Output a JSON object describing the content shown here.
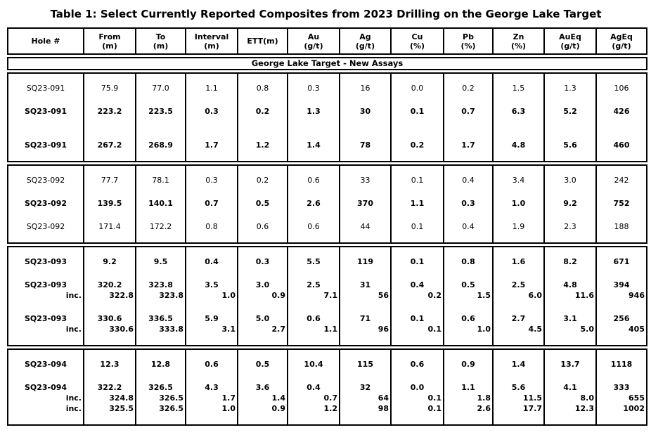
{
  "page": {
    "title": "Table 1: Select Currently Reported Composites from 2023 Drilling on the George Lake Target"
  },
  "table": {
    "band": "George Lake Target - New Assays",
    "columns": [
      {
        "line1": "Hole #",
        "line2": ""
      },
      {
        "line1": "From",
        "line2": "(m)"
      },
      {
        "line1": "To",
        "line2": "(m)"
      },
      {
        "line1": "Interval",
        "line2": "(m)"
      },
      {
        "line1": "ETT(m)",
        "line2": ""
      },
      {
        "line1": "Au",
        "line2": "(g/t)"
      },
      {
        "line1": "Ag",
        "line2": "(g/t)"
      },
      {
        "line1": "Cu",
        "line2": "(%)"
      },
      {
        "line1": "Pb",
        "line2": "(%)"
      },
      {
        "line1": "Zn",
        "line2": "(%)"
      },
      {
        "line1": "AuEq",
        "line2": "(g/t)"
      },
      {
        "line1": "AgEq",
        "line2": "(g/t)"
      }
    ],
    "groups": [
      {
        "rows": [
          {
            "bold": false,
            "cells": [
              "SQ23-091",
              "75.9",
              "77.0",
              "1.1",
              "0.8",
              "0.3",
              "16",
              "0.0",
              "0.2",
              "1.5",
              "1.3",
              "106"
            ]
          },
          {
            "bold": true,
            "cells": [
              "SQ23-091",
              "223.2",
              "223.5",
              "0.3",
              "0.2",
              "1.3",
              "30",
              "0.1",
              "0.7",
              "6.3",
              "5.2",
              "426"
            ]
          },
          {
            "bold": true,
            "gap_before": true,
            "cells": [
              "SQ23-091",
              "267.2",
              "268.9",
              "1.7",
              "1.2",
              "1.4",
              "78",
              "0.2",
              "1.7",
              "4.8",
              "5.6",
              "460"
            ]
          }
        ]
      },
      {
        "rows": [
          {
            "bold": false,
            "cells": [
              "SQ23-092",
              "77.7",
              "78.1",
              "0.3",
              "0.2",
              "0.6",
              "33",
              "0.1",
              "0.4",
              "3.4",
              "3.0",
              "242"
            ]
          },
          {
            "bold": true,
            "cells": [
              "SQ23-092",
              "139.5",
              "140.1",
              "0.7",
              "0.5",
              "2.6",
              "370",
              "1.1",
              "0.3",
              "1.0",
              "9.2",
              "752"
            ]
          },
          {
            "bold": false,
            "cells": [
              "SQ23-092",
              "171.4",
              "172.2",
              "0.8",
              "0.6",
              "0.6",
              "44",
              "0.1",
              "0.4",
              "1.9",
              "2.3",
              "188"
            ]
          }
        ]
      },
      {
        "rows": [
          {
            "bold": true,
            "cells": [
              "SQ23-093",
              "9.2",
              "9.5",
              "0.4",
              "0.3",
              "5.5",
              "119",
              "0.1",
              "0.8",
              "1.6",
              "8.2",
              "671"
            ]
          },
          {
            "bold": true,
            "cells": [
              "SQ23-093",
              "320.2",
              "323.8",
              "3.5",
              "3.0",
              "2.5",
              "31",
              "0.4",
              "0.5",
              "2.5",
              "4.8",
              "394"
            ],
            "subrows": [
              [
                "inc.",
                "322.8",
                "323.8",
                "1.0",
                "0.9",
                "7.1",
                "56",
                "0.2",
                "1.5",
                "6.0",
                "11.6",
                "946"
              ]
            ]
          },
          {
            "bold": true,
            "cells": [
              "SQ23-093",
              "330.6",
              "336.5",
              "5.9",
              "5.0",
              "0.6",
              "71",
              "0.1",
              "0.6",
              "2.7",
              "3.1",
              "256"
            ],
            "subrows": [
              [
                "inc.",
                "330.6",
                "333.8",
                "3.1",
                "2.7",
                "1.1",
                "96",
                "0.1",
                "1.0",
                "4.5",
                "5.0",
                "405"
              ]
            ]
          }
        ]
      },
      {
        "rows": [
          {
            "bold": true,
            "cells": [
              "SQ23-094",
              "12.3",
              "12.8",
              "0.6",
              "0.5",
              "10.4",
              "115",
              "0.6",
              "0.9",
              "1.4",
              "13.7",
              "1118"
            ]
          },
          {
            "bold": true,
            "cells": [
              "SQ23-094",
              "322.2",
              "326.5",
              "4.3",
              "3.6",
              "0.4",
              "32",
              "0.0",
              "1.1",
              "5.6",
              "4.1",
              "333"
            ],
            "subrows": [
              [
                "inc.",
                "324.8",
                "326.5",
                "1.7",
                "1.4",
                "0.7",
                "64",
                "0.1",
                "1.8",
                "11.5",
                "8.0",
                "655"
              ],
              [
                "inc.",
                "325.5",
                "326.5",
                "1.0",
                "0.9",
                "1.2",
                "98",
                "0.1",
                "2.6",
                "17.7",
                "12.3",
                "1002"
              ]
            ]
          }
        ]
      }
    ]
  }
}
